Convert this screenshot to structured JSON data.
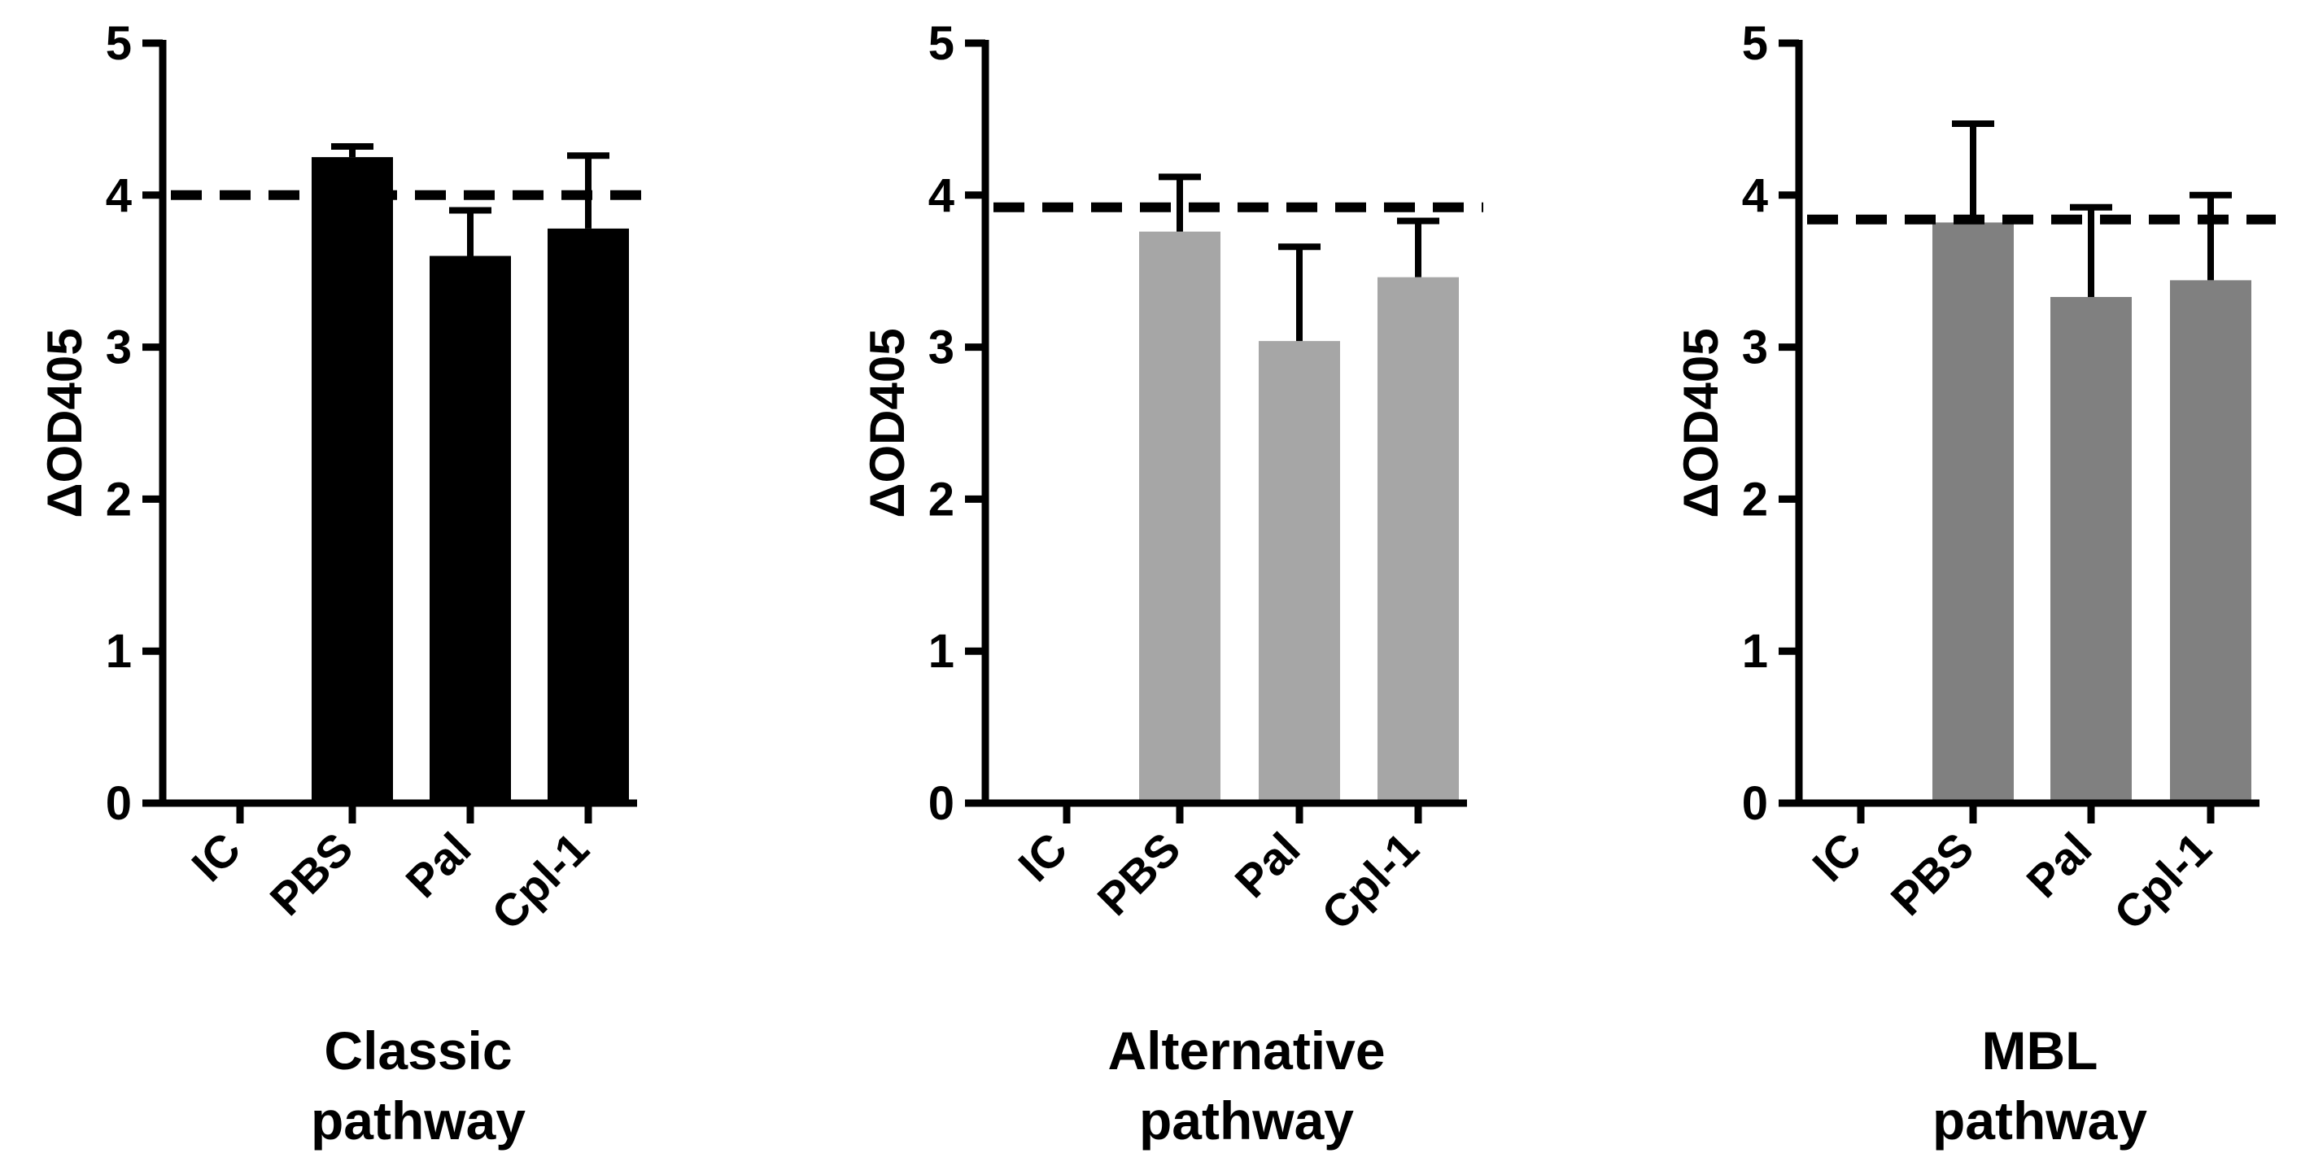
{
  "chart_data": [
    {
      "type": "bar",
      "title_lines": [
        "Classic",
        "pathway"
      ],
      "ylabel": "ΔOD405",
      "xlabel": "",
      "categories": [
        "IC",
        "PBS",
        "Pal",
        "Cpl-1"
      ],
      "values": [
        0,
        4.25,
        3.6,
        3.78
      ],
      "error_upper": [
        0,
        0.07,
        0.3,
        0.48
      ],
      "reference_line": 4.0,
      "ylim": [
        0,
        5
      ],
      "yticks": [
        0,
        1,
        2,
        3,
        4,
        5
      ],
      "bar_color": "#000000",
      "grid": false
    },
    {
      "type": "bar",
      "title_lines": [
        "Alternative",
        "pathway"
      ],
      "ylabel": "ΔOD405",
      "xlabel": "",
      "categories": [
        "IC",
        "PBS",
        "Pal",
        "Cpl-1"
      ],
      "values": [
        0,
        3.76,
        3.04,
        3.46
      ],
      "error_upper": [
        0,
        0.36,
        0.62,
        0.37
      ],
      "reference_line": 3.92,
      "ylim": [
        0,
        5
      ],
      "yticks": [
        0,
        1,
        2,
        3,
        4,
        5
      ],
      "bar_color": "#A6A6A6",
      "grid": false
    },
    {
      "type": "bar",
      "title_lines": [
        "MBL",
        "pathway"
      ],
      "ylabel": "ΔOD405",
      "xlabel": "",
      "categories": [
        "IC",
        "PBS",
        "Pal",
        "Cpl-1"
      ],
      "values": [
        0,
        3.82,
        3.33,
        3.44
      ],
      "error_upper": [
        0,
        0.65,
        0.59,
        0.56
      ],
      "reference_line": 3.84,
      "ylim": [
        0,
        5
      ],
      "yticks": [
        0,
        1,
        2,
        3,
        4,
        5
      ],
      "bar_color": "#808080",
      "grid": false
    }
  ]
}
